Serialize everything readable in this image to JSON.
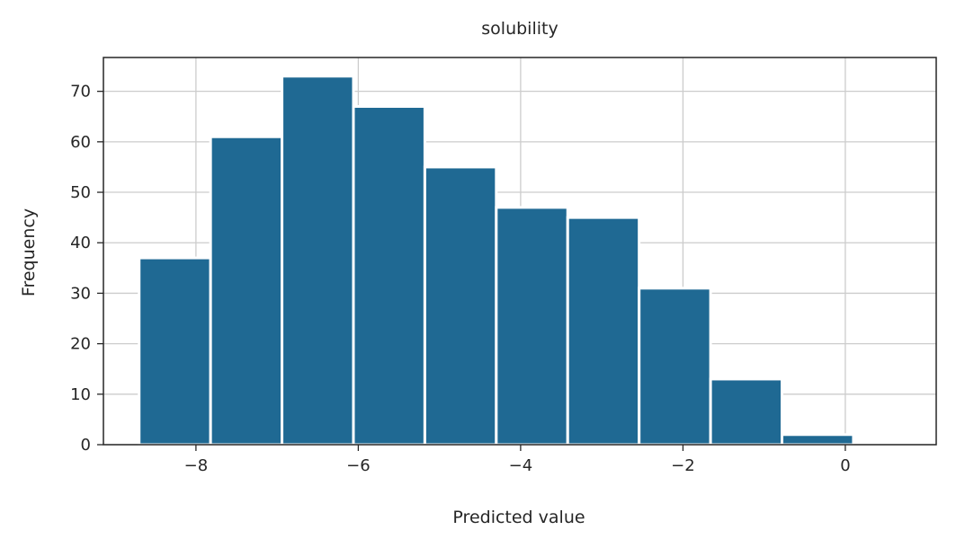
{
  "chart_data": {
    "type": "bar",
    "title": "solubility",
    "xlabel": "Predicted value",
    "ylabel": "Frequency",
    "bins": [
      {
        "x0": -8.7,
        "x1": -7.82,
        "count": 37
      },
      {
        "x0": -7.82,
        "x1": -6.94,
        "count": 61
      },
      {
        "x0": -6.94,
        "x1": -6.06,
        "count": 73
      },
      {
        "x0": -6.06,
        "x1": -5.18,
        "count": 67
      },
      {
        "x0": -5.18,
        "x1": -4.3,
        "count": 55
      },
      {
        "x0": -4.3,
        "x1": -3.42,
        "count": 47
      },
      {
        "x0": -3.42,
        "x1": -2.54,
        "count": 45
      },
      {
        "x0": -2.54,
        "x1": -1.66,
        "count": 31
      },
      {
        "x0": -1.66,
        "x1": -0.78,
        "count": 13
      },
      {
        "x0": -0.78,
        "x1": 0.1,
        "count": 2
      }
    ],
    "xlim": [
      -9.14,
      1.12
    ],
    "ylim": [
      0,
      76.7
    ],
    "xticks": [
      -8,
      -6,
      -4,
      -2,
      0
    ],
    "xtick_labels": [
      "−8",
      "−6",
      "−4",
      "−2",
      "0"
    ],
    "yticks": [
      0,
      10,
      20,
      30,
      40,
      50,
      60,
      70
    ],
    "ytick_labels": [
      "0",
      "10",
      "20",
      "30",
      "40",
      "50",
      "60",
      "70"
    ],
    "grid": true,
    "bar_color": "#1f6993",
    "grid_color": "#cccccc",
    "axis_color": "#262626"
  }
}
